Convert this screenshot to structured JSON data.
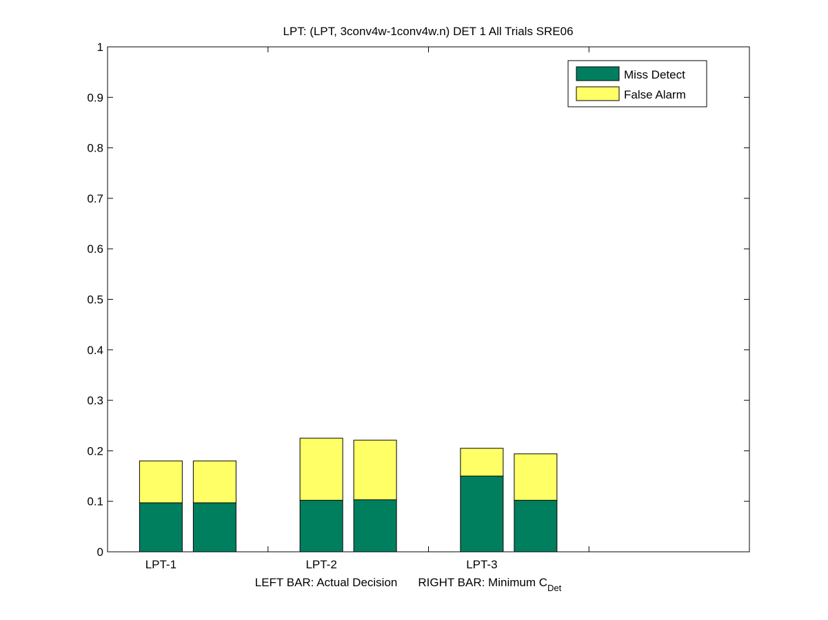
{
  "chart_data": {
    "type": "bar",
    "stacked": true,
    "title": "LPT: (LPT, 3conv4w-1conv4w.n) DET 1 All Trials SRE06",
    "xlabel": {
      "left": "LEFT BAR: Actual Decision",
      "right_main": "RIGHT BAR: Minimum C",
      "right_sub": "Det"
    },
    "ylabel": "",
    "ylim": [
      0,
      1
    ],
    "yticks": [
      "0",
      "0.1",
      "0.2",
      "0.3",
      "0.4",
      "0.5",
      "0.6",
      "0.7",
      "0.8",
      "0.9",
      "1"
    ],
    "grid": false,
    "legend_position": "top-right",
    "categories": [
      "LPT-1",
      "LPT-2",
      "LPT-3"
    ],
    "bar_kinds": [
      "Actual Decision",
      "Minimum CDet"
    ],
    "series": [
      {
        "name": "Miss Detect",
        "color": "#007F5F",
        "values": [
          [
            0.097,
            0.097
          ],
          [
            0.102,
            0.103
          ],
          [
            0.15,
            0.102
          ]
        ]
      },
      {
        "name": "False Alarm",
        "color": "#FFFF66",
        "values": [
          [
            0.083,
            0.083
          ],
          [
            0.123,
            0.118
          ],
          [
            0.055,
            0.092
          ]
        ]
      }
    ]
  }
}
